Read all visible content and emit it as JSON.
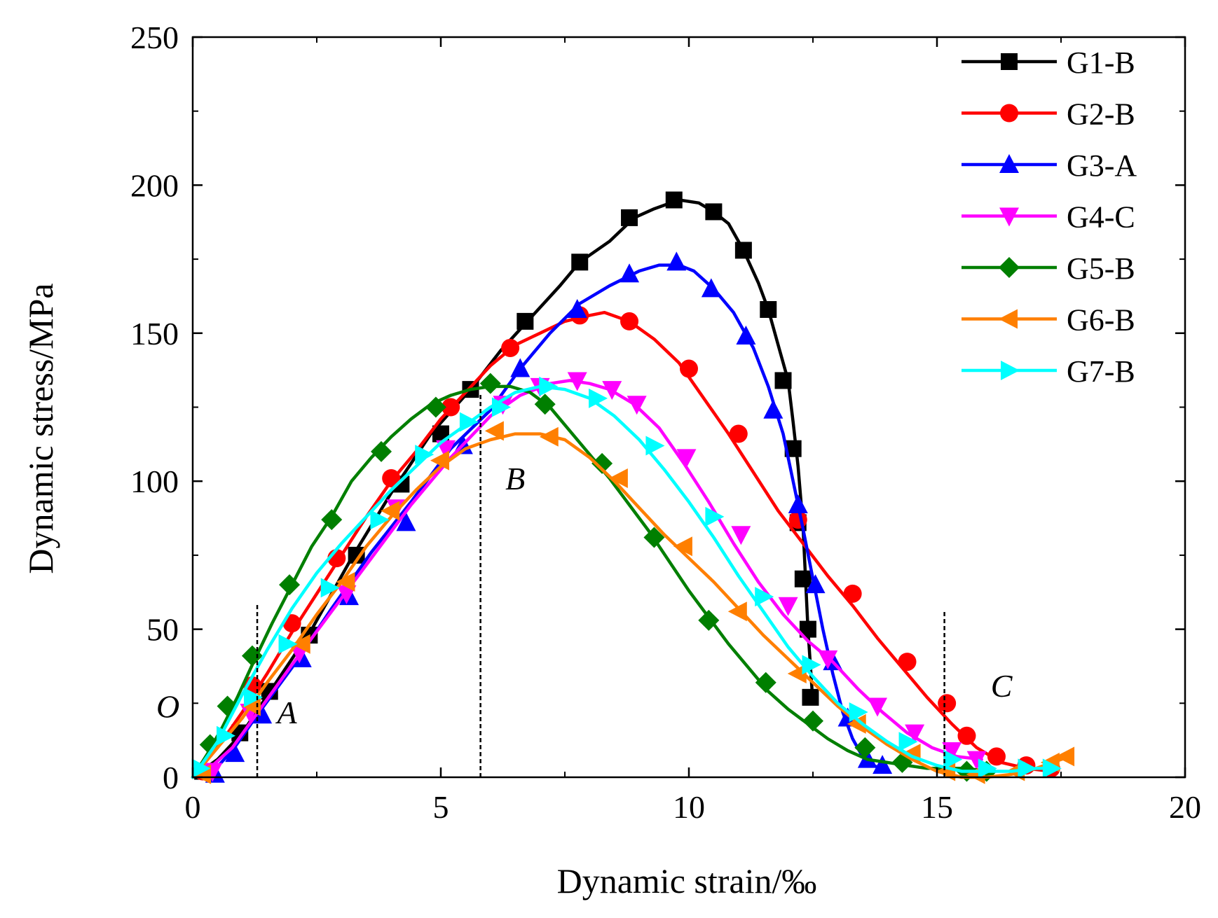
{
  "chart_data": {
    "type": "line",
    "title": "",
    "xlabel": "Dynamic strain/‰",
    "ylabel": "Dynamic stress/MPa",
    "xlim": [
      0,
      20
    ],
    "ylim": [
      0,
      250
    ],
    "xticks": [
      0,
      5,
      10,
      15,
      20
    ],
    "yticks": [
      0,
      50,
      100,
      150,
      200,
      250
    ],
    "xtick_labels": [
      "0",
      "5",
      "10",
      "15",
      "20"
    ],
    "ytick_labels": [
      "0",
      "50",
      "100",
      "150",
      "200",
      "250"
    ],
    "grid": false,
    "legend_position": "top-right",
    "series": [
      {
        "name": "G1-B",
        "color": "#000000",
        "marker": "square",
        "x": [
          0.0,
          0.5,
          1.0,
          1.6,
          2.4,
          3.2,
          4.0,
          4.8,
          5.6,
          6.2,
          6.8,
          7.4,
          7.8,
          8.4,
          8.9,
          9.3,
          9.8,
          10.2,
          10.5,
          10.8,
          11.1,
          11.4,
          11.6,
          11.8,
          12.0,
          12.1,
          12.2,
          12.3,
          12.4,
          12.5
        ],
        "y": [
          0,
          6,
          15,
          30,
          50,
          74,
          96,
          116,
          131,
          144,
          155,
          166,
          174,
          181,
          189,
          192,
          195,
          194,
          191,
          187,
          178,
          167,
          158,
          146,
          134,
          120,
          105,
          85,
          50,
          25
        ],
        "markers_x": [
          0.2,
          0.95,
          1.55,
          2.35,
          3.3,
          4.2,
          5.0,
          5.6,
          6.7,
          7.8,
          8.8,
          9.7,
          10.5,
          11.1,
          11.6,
          11.9,
          12.1,
          12.2,
          12.3,
          12.4,
          12.45
        ],
        "markers_y": [
          2,
          15,
          29,
          48,
          75,
          99,
          116,
          131,
          154,
          174,
          189,
          195,
          191,
          178,
          158,
          134,
          111,
          86,
          67,
          50,
          27
        ]
      },
      {
        "name": "G2-B",
        "color": "#ff0000",
        "marker": "circle",
        "x": [
          0.0,
          0.5,
          1.0,
          1.5,
          2.0,
          2.5,
          3.0,
          3.5,
          4.0,
          4.5,
          5.0,
          5.5,
          6.0,
          6.5,
          7.0,
          7.5,
          8.0,
          8.3,
          8.8,
          9.3,
          9.8,
          10.3,
          10.8,
          11.3,
          11.8,
          12.3,
          12.8,
          13.3,
          13.8,
          14.3,
          14.8,
          15.3,
          15.8,
          16.3,
          16.8,
          17.3
        ],
        "y": [
          0,
          10,
          22,
          35,
          49,
          62,
          75,
          88,
          100,
          110,
          121,
          130,
          139,
          146,
          150,
          154,
          156,
          157,
          154,
          148,
          140,
          128,
          116,
          103,
          90,
          79,
          68,
          58,
          47,
          37,
          27,
          18,
          10,
          5,
          3,
          2
        ],
        "markers_x": [
          0.2,
          1.2,
          2.0,
          2.9,
          4.0,
          5.2,
          6.4,
          7.8,
          8.8,
          10.0,
          11.0,
          12.2,
          13.3,
          14.4,
          15.2,
          15.6,
          16.2,
          16.8,
          17.3
        ],
        "markers_y": [
          2,
          31,
          52,
          74,
          101,
          125,
          145,
          156,
          154,
          138,
          116,
          87,
          62,
          39,
          25,
          14,
          7,
          4,
          3
        ]
      },
      {
        "name": "G3-A",
        "color": "#0000ff",
        "marker": "triangle-up",
        "x": [
          0.3,
          0.8,
          1.3,
          2.0,
          2.8,
          3.6,
          4.4,
          5.2,
          6.0,
          6.6,
          7.2,
          7.8,
          8.4,
          9.0,
          9.4,
          9.8,
          10.1,
          10.5,
          10.9,
          11.3,
          11.6,
          11.9,
          12.1,
          12.3,
          12.5,
          12.7,
          12.9,
          13.1,
          13.3,
          13.5,
          13.7,
          13.9
        ],
        "y": [
          0,
          9,
          21,
          37,
          57,
          76,
          93,
          111,
          124,
          138,
          150,
          160,
          166,
          171,
          173,
          173,
          171,
          165,
          157,
          145,
          132,
          116,
          100,
          84,
          67,
          50,
          35,
          22,
          13,
          7,
          4,
          3
        ],
        "markers_x": [
          0.45,
          0.85,
          1.4,
          2.2,
          3.15,
          4.3,
          5.45,
          6.6,
          7.75,
          8.8,
          9.75,
          10.45,
          11.15,
          11.7,
          12.2,
          12.55,
          12.9,
          13.2,
          13.6,
          13.9
        ],
        "markers_y": [
          1,
          8,
          21,
          40,
          61,
          86,
          112,
          138,
          158,
          170,
          174,
          165,
          149,
          124,
          92,
          65,
          39,
          20,
          6,
          4
        ]
      },
      {
        "name": "G4-C",
        "color": "#ff00ff",
        "marker": "triangle-down",
        "x": [
          0.2,
          0.8,
          1.4,
          2.0,
          2.8,
          3.6,
          4.4,
          5.2,
          6.0,
          6.6,
          7.2,
          7.6,
          8.0,
          8.4,
          8.9,
          9.4,
          9.9,
          10.4,
          10.9,
          11.4,
          11.9,
          12.4,
          12.9,
          13.4,
          13.9,
          14.4,
          14.9,
          15.4,
          15.9
        ],
        "y": [
          1,
          10,
          24,
          38,
          56,
          74,
          92,
          108,
          122,
          129,
          133,
          134,
          133,
          131,
          126,
          118,
          106,
          93,
          79,
          66,
          55,
          46,
          39,
          30,
          22,
          15,
          10,
          7,
          6
        ],
        "markers_x": [
          0.4,
          1.15,
          2.15,
          3.1,
          4.1,
          5.1,
          6.25,
          7.0,
          7.75,
          8.45,
          8.95,
          9.95,
          11.05,
          12.0,
          12.8,
          13.8,
          14.55,
          15.3,
          15.8
        ],
        "markers_y": [
          2,
          22,
          42,
          62,
          91,
          111,
          126,
          132,
          134,
          131,
          126,
          108,
          82,
          58,
          40,
          24,
          15,
          9,
          6
        ]
      },
      {
        "name": "G5-B",
        "color": "#007f00",
        "marker": "diamond",
        "x": [
          0.0,
          0.3,
          0.6,
          0.9,
          1.2,
          1.6,
          2.0,
          2.4,
          2.8,
          3.2,
          3.6,
          4.0,
          4.4,
          4.8,
          5.2,
          5.6,
          6.0,
          6.4,
          6.8,
          7.2,
          7.6,
          8.0,
          8.4,
          8.8,
          9.2,
          9.6,
          10.0,
          10.4,
          10.8,
          11.2,
          11.6,
          12.0,
          12.4,
          12.8,
          13.2,
          13.6,
          14.0,
          14.4,
          14.8,
          15.2,
          15.6,
          16.0
        ],
        "y": [
          0,
          8,
          17,
          27,
          38,
          52,
          65,
          78,
          88,
          100,
          108,
          115,
          121,
          126,
          129,
          131,
          132,
          132,
          130,
          125,
          117,
          109,
          101,
          92,
          83,
          73,
          63,
          54,
          45,
          37,
          29,
          23,
          18,
          13,
          9,
          6,
          5,
          4,
          3,
          3,
          3,
          2
        ],
        "markers_x": [
          0.35,
          0.7,
          1.2,
          1.95,
          2.8,
          3.8,
          4.9,
          6.0,
          7.1,
          8.25,
          9.3,
          10.4,
          11.55,
          12.5,
          13.55,
          14.3,
          15.6,
          16.0
        ],
        "markers_y": [
          11,
          24,
          41,
          65,
          87,
          110,
          125,
          133,
          126,
          106,
          81,
          53,
          32,
          19,
          10,
          5,
          2,
          2
        ]
      },
      {
        "name": "G6-B",
        "color": "#ff7f00",
        "marker": "triangle-left",
        "x": [
          0.0,
          0.5,
          1.0,
          1.5,
          2.0,
          2.5,
          3.0,
          3.5,
          4.0,
          4.5,
          5.0,
          5.5,
          6.0,
          6.5,
          7.0,
          7.5,
          8.0,
          8.5,
          9.0,
          9.5,
          10.0,
          10.5,
          11.0,
          11.5,
          12.0,
          12.5,
          13.0,
          13.5,
          14.0,
          14.5,
          15.0,
          15.5,
          16.0,
          16.5,
          17.0,
          17.5,
          17.7
        ],
        "y": [
          0,
          10,
          20,
          32,
          43,
          55,
          66,
          78,
          88,
          97,
          105,
          111,
          114,
          116,
          116,
          114,
          108,
          100,
          91,
          82,
          74,
          66,
          57,
          48,
          40,
          32,
          24,
          17,
          11,
          6,
          2,
          0,
          0,
          1,
          3,
          6,
          7
        ],
        "markers_x": [
          0.2,
          1.2,
          2.2,
          3.1,
          4.0,
          5.0,
          6.1,
          7.2,
          8.6,
          9.9,
          11.0,
          12.2,
          13.4,
          14.5,
          15.2,
          15.8,
          16.6,
          17.3,
          17.6
        ],
        "markers_y": [
          1,
          24,
          45,
          66,
          90,
          107,
          117,
          115,
          101,
          78,
          56,
          35,
          18,
          8,
          2,
          1,
          2,
          5,
          7
        ]
      },
      {
        "name": "G7-B",
        "color": "#00ffff",
        "marker": "triangle-right",
        "x": [
          0.0,
          0.5,
          1.0,
          1.5,
          2.0,
          2.5,
          3.0,
          3.5,
          4.0,
          4.5,
          5.0,
          5.5,
          6.0,
          6.5,
          7.0,
          7.5,
          8.0,
          8.5,
          9.0,
          9.5,
          10.0,
          10.5,
          11.0,
          11.5,
          12.0,
          12.5,
          13.0,
          13.5,
          14.0,
          14.5,
          15.0,
          15.5,
          16.0,
          16.5,
          17.0,
          17.4
        ],
        "y": [
          0,
          12,
          28,
          43,
          57,
          69,
          79,
          88,
          97,
          105,
          113,
          119,
          125,
          130,
          132,
          131,
          128,
          122,
          114,
          104,
          93,
          81,
          68,
          56,
          44,
          34,
          25,
          18,
          12,
          7,
          4,
          2,
          2,
          2,
          3,
          3
        ],
        "markers_x": [
          0.15,
          0.65,
          1.2,
          1.9,
          2.75,
          3.75,
          4.65,
          5.55,
          6.2,
          7.15,
          8.15,
          9.3,
          10.5,
          11.5,
          12.45,
          13.4,
          14.4,
          15.3,
          16.0,
          16.8,
          17.3
        ],
        "markers_y": [
          3,
          14,
          27,
          45,
          64,
          87,
          109,
          120,
          125,
          132,
          128,
          112,
          88,
          61,
          38,
          22,
          12,
          6,
          3,
          3,
          3
        ]
      }
    ],
    "reference_lines": [
      {
        "x": 1.3,
        "y_top": 59
      },
      {
        "x": 5.8,
        "y_top": 130
      },
      {
        "x": 15.15,
        "y_top": 56
      }
    ],
    "annotations": [
      {
        "text": "O",
        "x": -0.5,
        "y": 24
      },
      {
        "text": "A",
        "x": 1.9,
        "y": 22
      },
      {
        "text": "B",
        "x": 6.5,
        "y": 101
      },
      {
        "text": "C",
        "x": 16.3,
        "y": 31
      }
    ]
  }
}
